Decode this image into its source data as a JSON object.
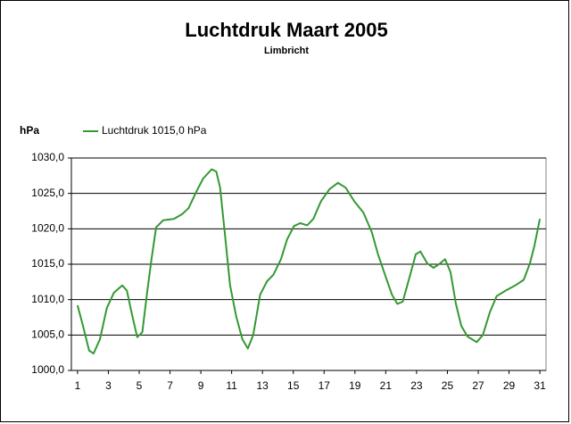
{
  "chart_data": {
    "type": "line",
    "title": "Luchtdruk Maart 2005",
    "subtitle": "Limbricht",
    "y_label": "hPa",
    "x": [
      1,
      1.35,
      1.75,
      2.04,
      2.45,
      2.9,
      3.37,
      3.9,
      4.2,
      4.5,
      4.87,
      5.2,
      5.5,
      5.8,
      6.1,
      6.55,
      7.25,
      7.8,
      8.2,
      8.7,
      9.15,
      9.7,
      10.0,
      10.25,
      10.55,
      10.9,
      11.3,
      11.7,
      12.05,
      12.4,
      12.85,
      13.3,
      13.7,
      14.2,
      14.6,
      15.05,
      15.45,
      15.9,
      16.3,
      16.8,
      17.35,
      17.9,
      18.4,
      18.95,
      19.55,
      20.1,
      20.5,
      21.0,
      21.4,
      21.75,
      22.1,
      22.55,
      22.95,
      23.25,
      23.7,
      24.1,
      24.45,
      24.85,
      25.2,
      25.55,
      25.9,
      26.3,
      26.9,
      27.3,
      27.75,
      28.2,
      28.8,
      29.4,
      29.95,
      30.35,
      30.65,
      31.0
    ],
    "series": [
      {
        "name": "Luchtdruk 1015,0 hPa",
        "color": "#339933",
        "values": [
          1009.2,
          1006.3,
          1002.8,
          1002.4,
          1004.4,
          1008.8,
          1011.0,
          1012.0,
          1011.3,
          1008.2,
          1004.7,
          1005.4,
          1010.7,
          1015.7,
          1020.2,
          1021.2,
          1021.4,
          1022.1,
          1022.9,
          1025.2,
          1027.1,
          1028.4,
          1028.1,
          1025.8,
          1019.5,
          1012.0,
          1007.6,
          1004.4,
          1003.1,
          1005.0,
          1010.7,
          1012.6,
          1013.5,
          1015.7,
          1018.5,
          1020.4,
          1020.8,
          1020.5,
          1021.4,
          1023.9,
          1025.6,
          1026.5,
          1025.8,
          1023.9,
          1022.3,
          1019.5,
          1016.4,
          1013.2,
          1010.7,
          1009.4,
          1009.7,
          1013.2,
          1016.4,
          1016.8,
          1015.1,
          1014.5,
          1015.0,
          1015.7,
          1013.9,
          1009.4,
          1006.3,
          1004.8,
          1004.0,
          1005.0,
          1008.2,
          1010.5,
          1011.3,
          1012.0,
          1012.8,
          1015.1,
          1017.6,
          1021.4
        ]
      }
    ],
    "xlim": [
      0.6,
      31.4
    ],
    "xticks": [
      1,
      3,
      5,
      7,
      9,
      11,
      13,
      15,
      17,
      19,
      21,
      23,
      25,
      27,
      29,
      31
    ],
    "ylim": [
      1000,
      1030
    ],
    "yticks": [
      {
        "value": 1000,
        "label": "1000,0"
      },
      {
        "value": 1005,
        "label": "1005,0"
      },
      {
        "value": 1010,
        "label": "1010,0"
      },
      {
        "value": 1015,
        "label": "1015,0"
      },
      {
        "value": 1020,
        "label": "1020,0"
      },
      {
        "value": 1025,
        "label": "1025,0"
      },
      {
        "value": 1030,
        "label": "1030,0"
      }
    ],
    "grid": true
  }
}
